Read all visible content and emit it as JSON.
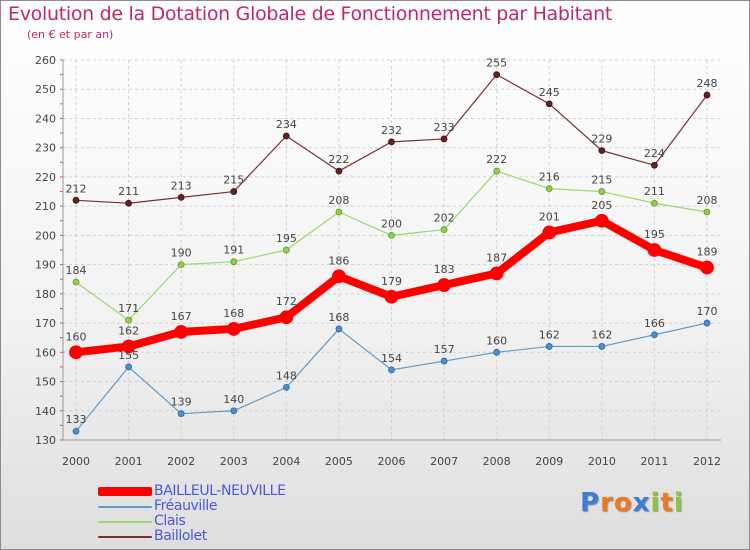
{
  "header": {
    "title": "Evolution de la Dotation Globale de Fonctionnement par Habitant",
    "subtitle": "(en € et par an)"
  },
  "logo": {
    "text": "Proxiti"
  },
  "colors": {
    "title": "#c2266a",
    "BAILLEUL-NEUVILLE": "#ff0000",
    "Fréauville": "#5f9bc8",
    "Clais": "#9ed86a",
    "Baillolet": "#7a2f2f"
  },
  "chart_data": {
    "type": "line",
    "title": "Evolution de la Dotation Globale de Fonctionnement par Habitant",
    "subtitle": "(en € et par an)",
    "x": [
      "2000",
      "2001",
      "2002",
      "2003",
      "2004",
      "2005",
      "2006",
      "2007",
      "2008",
      "2009",
      "2010",
      "2011",
      "2012"
    ],
    "ylim": [
      130,
      260
    ],
    "yticks": [
      130,
      140,
      150,
      160,
      170,
      180,
      190,
      200,
      210,
      220,
      230,
      240,
      250,
      260
    ],
    "grid": true,
    "legend_position": "bottom-left",
    "series": [
      {
        "name": "BAILLEUL-NEUVILLE",
        "values": [
          160,
          162,
          167,
          168,
          172,
          186,
          179,
          183,
          187,
          201,
          205,
          195,
          189
        ]
      },
      {
        "name": "Fréauville",
        "values": [
          133,
          155,
          139,
          140,
          148,
          168,
          154,
          157,
          160,
          162,
          162,
          166,
          170
        ]
      },
      {
        "name": "Clais",
        "values": [
          184,
          171,
          190,
          191,
          195,
          208,
          200,
          202,
          222,
          216,
          215,
          211,
          208
        ]
      },
      {
        "name": "Baillolet",
        "values": [
          212,
          211,
          213,
          215,
          234,
          222,
          232,
          233,
          255,
          245,
          229,
          224,
          248
        ]
      }
    ]
  }
}
